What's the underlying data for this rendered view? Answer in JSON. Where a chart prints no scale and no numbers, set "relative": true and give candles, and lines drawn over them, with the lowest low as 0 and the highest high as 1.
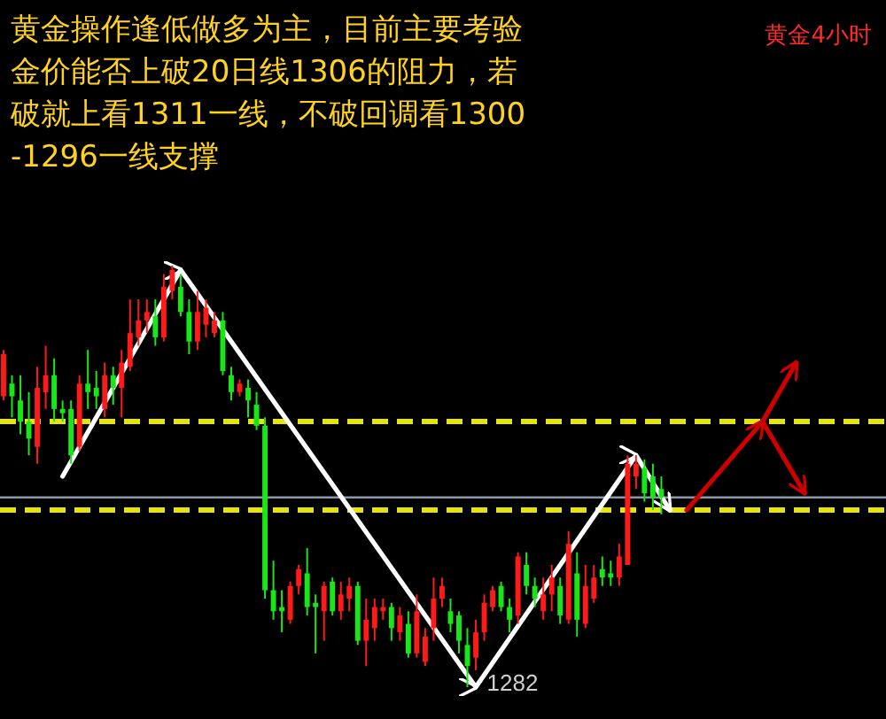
{
  "chart_data": {
    "type": "candlestick",
    "title": "黄金操作逢低做多为主，目前主要考验金价能否上破20日线1306的阻力，若破就上看1311一线，不破回调看1300-1296一线支撑",
    "subtitle": "黄金4小时",
    "relative": true,
    "categories": [
      null,
      null,
      null,
      null,
      null,
      null,
      null,
      null,
      null,
      null,
      null,
      null,
      null,
      null,
      null,
      null,
      null,
      null,
      null,
      null,
      null,
      null,
      null,
      null,
      null,
      null,
      null,
      null,
      null,
      null,
      null,
      null,
      null,
      null,
      null,
      null,
      null,
      null,
      null,
      null,
      null,
      null,
      null,
      null,
      null,
      null,
      null,
      null,
      null,
      null,
      null,
      null,
      null,
      null,
      null,
      null,
      null,
      null,
      null,
      null,
      null,
      null,
      null,
      null,
      null,
      null,
      null,
      null,
      null,
      null,
      null,
      null,
      null,
      null,
      null,
      null,
      null,
      null,
      null,
      null,
      null,
      null,
      null,
      null,
      null,
      null,
      null,
      null,
      null,
      null,
      null,
      null,
      null,
      null,
      null,
      null,
      null
    ],
    "ohlc": [
      [
        0.69,
        0.8,
        0.68,
        0.79
      ],
      [
        0.72,
        0.74,
        0.64,
        0.69
      ],
      [
        0.68,
        0.74,
        0.6,
        0.63
      ],
      [
        0.63,
        0.7,
        0.55,
        0.59
      ],
      [
        0.57,
        0.76,
        0.53,
        0.71
      ],
      [
        0.7,
        0.81,
        0.66,
        0.74
      ],
      [
        0.74,
        0.78,
        0.63,
        0.66
      ],
      [
        0.66,
        0.68,
        0.63,
        0.65
      ],
      [
        0.66,
        0.68,
        0.53,
        0.55
      ],
      [
        0.57,
        0.74,
        0.56,
        0.72
      ],
      [
        0.72,
        0.8,
        0.66,
        0.7
      ],
      [
        0.71,
        0.75,
        0.66,
        0.69
      ],
      [
        0.66,
        0.77,
        0.64,
        0.74
      ],
      [
        0.74,
        0.76,
        0.67,
        0.71
      ],
      [
        0.71,
        0.8,
        0.64,
        0.77
      ],
      [
        0.76,
        0.92,
        0.75,
        0.84
      ],
      [
        0.83,
        0.92,
        0.81,
        0.87
      ],
      [
        0.87,
        0.92,
        0.84,
        0.89
      ],
      [
        0.88,
        0.92,
        0.81,
        0.83
      ],
      [
        0.83,
        0.98,
        0.82,
        0.95
      ],
      [
        0.94,
        1,
        0.92,
        0.99
      ],
      [
        0.95,
        0.98,
        0.88,
        0.89
      ],
      [
        0.89,
        0.92,
        0.79,
        0.82
      ],
      [
        0.82,
        0.94,
        0.8,
        0.89
      ],
      [
        0.86,
        0.92,
        0.83,
        0.9
      ],
      [
        0.84,
        0.89,
        0.83,
        0.87
      ],
      [
        0.87,
        0.89,
        0.74,
        0.75
      ],
      [
        0.74,
        0.76,
        0.68,
        0.7
      ],
      [
        0.7,
        0.73,
        0.69,
        0.72
      ],
      [
        0.71,
        0.73,
        0.64,
        0.68
      ],
      [
        0.67,
        0.7,
        0.61,
        0.62
      ],
      [
        0.62,
        0.64,
        0.21,
        0.23
      ],
      [
        0.23,
        0.3,
        0.16,
        0.18
      ],
      [
        0.19,
        0.23,
        0.13,
        0.18
      ],
      [
        0.16,
        0.25,
        0.15,
        0.24
      ],
      [
        0.24,
        0.29,
        0.22,
        0.28
      ],
      [
        0.27,
        0.33,
        0.17,
        0.19
      ],
      [
        0.2,
        0.22,
        0.08,
        0.19
      ],
      [
        0.18,
        0.25,
        0.11,
        0.24
      ],
      [
        0.25,
        0.26,
        0.17,
        0.18
      ],
      [
        0.18,
        0.25,
        0.16,
        0.22
      ],
      [
        0.21,
        0.26,
        0.18,
        0.24
      ],
      [
        0.24,
        0.25,
        0.1,
        0.11
      ],
      [
        0.11,
        0.21,
        0.05,
        0.16
      ],
      [
        0.14,
        0.21,
        0.11,
        0.19
      ],
      [
        0.18,
        0.21,
        0.16,
        0.19
      ],
      [
        0.19,
        0.2,
        0.11,
        0.14
      ],
      [
        0.13,
        0.19,
        0.11,
        0.17
      ],
      [
        0.15,
        0.18,
        0.07,
        0.08
      ],
      [
        0.08,
        0.22,
        0.07,
        0.18
      ],
      [
        0.06,
        0.14,
        0.05,
        0.12
      ],
      [
        0.14,
        0.26,
        0.11,
        0.21
      ],
      [
        0.21,
        0.26,
        0.19,
        0.24
      ],
      [
        0.18,
        0.21,
        0.13,
        0.15
      ],
      [
        0.17,
        0.18,
        0.08,
        0.11
      ],
      [
        0.1,
        0.14,
        0,
        0.05
      ],
      [
        0.07,
        0.16,
        0.04,
        0.13
      ],
      [
        0.13,
        0.22,
        0.11,
        0.2
      ],
      [
        0.19,
        0.24,
        0.18,
        0.23
      ],
      [
        0.24,
        0.25,
        0.18,
        0.19
      ],
      [
        0.19,
        0.21,
        0.13,
        0.16
      ],
      [
        0.17,
        0.32,
        0.15,
        0.31
      ],
      [
        0.29,
        0.32,
        0.22,
        0.24
      ],
      [
        0.24,
        0.26,
        0.19,
        0.21
      ],
      [
        0.18,
        0.26,
        0.16,
        0.22
      ],
      [
        0.22,
        0.29,
        0.18,
        0.26
      ],
      [
        0.24,
        0.26,
        0.15,
        0.17
      ],
      [
        0.16,
        0.37,
        0.15,
        0.34
      ],
      [
        0.27,
        0.32,
        0.12,
        0.16
      ],
      [
        0.15,
        0.29,
        0.14,
        0.24
      ],
      [
        0.21,
        0.29,
        0.2,
        0.26
      ],
      [
        0.28,
        0.31,
        0.24,
        0.26
      ],
      [
        0.27,
        0.3,
        0.24,
        0.26
      ],
      [
        0.26,
        0.34,
        0.24,
        0.31
      ],
      [
        0.29,
        0.55,
        0.29,
        0.53
      ],
      [
        0.5,
        0.55,
        0.47,
        0.53
      ],
      [
        0.52,
        0.54,
        0.44,
        0.46
      ],
      [
        0.5,
        0.53,
        0.42,
        0.45
      ],
      [
        0.47,
        0.5,
        0.41,
        0.45
      ],
      null,
      null,
      null,
      null,
      null,
      null,
      null,
      null,
      null,
      null,
      null,
      null,
      null,
      null,
      null,
      null,
      null,
      null
    ],
    "series": [
      {
        "type": "line",
        "color": "#ffffff",
        "values": [
          null,
          null,
          null,
          null,
          null,
          null,
          null,
          0.5,
          null,
          null,
          null,
          null,
          null,
          null,
          null,
          null,
          null,
          null,
          null,
          null,
          null,
          0.99,
          null,
          null,
          null,
          null,
          null,
          null,
          null,
          null,
          null,
          null,
          null,
          null,
          null,
          null,
          null,
          null,
          null,
          null,
          null,
          null,
          null,
          null,
          null,
          null,
          null,
          null,
          null,
          null,
          null,
          null,
          null,
          null,
          null,
          null,
          0,
          null,
          null,
          null,
          null,
          null,
          null,
          null,
          null,
          null,
          null,
          null,
          null,
          null,
          null,
          null,
          null,
          null,
          null,
          0.55,
          null,
          null,
          null,
          0.42,
          null,
          null,
          null,
          null,
          null,
          null,
          null,
          null,
          null,
          null,
          null,
          null,
          null,
          null,
          null,
          null,
          null
        ]
      },
      {
        "type": "line",
        "color": "#cc0000",
        "values": [
          null,
          null,
          null,
          null,
          null,
          null,
          null,
          null,
          null,
          null,
          null,
          null,
          null,
          null,
          null,
          null,
          null,
          null,
          null,
          null,
          null,
          null,
          null,
          null,
          null,
          null,
          null,
          null,
          null,
          null,
          null,
          null,
          null,
          null,
          null,
          null,
          null,
          null,
          null,
          null,
          null,
          null,
          null,
          null,
          null,
          null,
          null,
          null,
          null,
          null,
          null,
          null,
          null,
          null,
          null,
          null,
          null,
          null,
          null,
          null,
          null,
          null,
          null,
          null,
          null,
          null,
          null,
          null,
          null,
          null,
          null,
          null,
          null,
          null,
          null,
          null,
          null,
          null,
          null,
          null,
          null,
          0.42,
          null,
          null,
          null,
          null,
          null,
          null,
          null,
          null,
          0.63,
          null,
          null,
          null,
          0.77,
          null,
          null
        ]
      },
      {
        "type": "line",
        "color": "#cc0000",
        "values": [
          null,
          null,
          null,
          null,
          null,
          null,
          null,
          null,
          null,
          null,
          null,
          null,
          null,
          null,
          null,
          null,
          null,
          null,
          null,
          null,
          null,
          null,
          null,
          null,
          null,
          null,
          null,
          null,
          null,
          null,
          null,
          null,
          null,
          null,
          null,
          null,
          null,
          null,
          null,
          null,
          null,
          null,
          null,
          null,
          null,
          null,
          null,
          null,
          null,
          null,
          null,
          null,
          null,
          null,
          null,
          null,
          null,
          null,
          null,
          null,
          null,
          null,
          null,
          null,
          null,
          null,
          null,
          null,
          null,
          null,
          null,
          null,
          null,
          null,
          null,
          null,
          null,
          null,
          null,
          null,
          null,
          null,
          null,
          null,
          null,
          null,
          null,
          null,
          null,
          null,
          0.63,
          null,
          null,
          null,
          null,
          0.46,
          null
        ]
      }
    ],
    "ref_lines": [
      {
        "axis": "y",
        "value": 0.45,
        "color": "#8a96a8"
      },
      {
        "axis": "y",
        "value": 0.63,
        "color": "#e6e600",
        "line_style": "dashed"
      },
      {
        "axis": "y",
        "value": 0.42,
        "color": "#e6e600",
        "line_style": "dashed"
      }
    ],
    "annotations": [
      "1282"
    ]
  }
}
